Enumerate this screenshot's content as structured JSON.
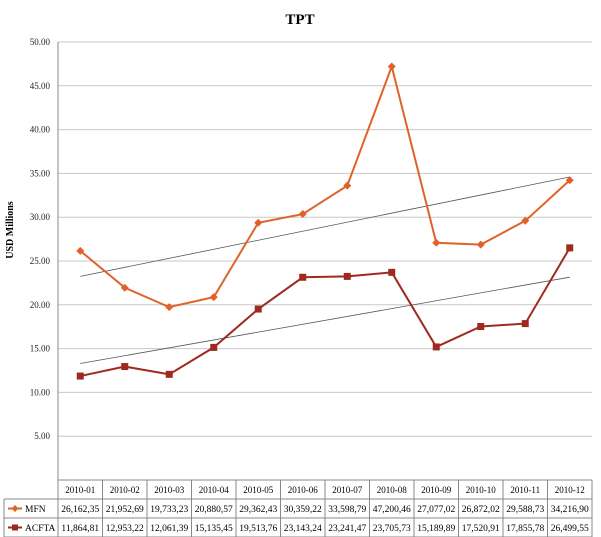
{
  "chart_data": {
    "type": "line",
    "title": "TPT",
    "ylabel": "USD Millions",
    "xlabel": "",
    "ylim": [
      0,
      50
    ],
    "yticks": [
      "",
      "5.00",
      "10.00",
      "15.00",
      "20.00",
      "25.00",
      "30.00",
      "35.00",
      "40.00",
      "45.00",
      "50.00"
    ],
    "grid": true,
    "legend": "table-bottom",
    "trendlines": true,
    "categories": [
      "2010-01",
      "2010-02",
      "2010-03",
      "2010-04",
      "2010-05",
      "2010-06",
      "2010-07",
      "2010-08",
      "2010-09",
      "2010-10",
      "2010-11",
      "2010-12"
    ],
    "series": [
      {
        "name": "MFN",
        "color": "#e0622a",
        "marker": "diamond",
        "values": [
          26.16235,
          21.95269,
          19.73323,
          20.88057,
          29.36243,
          30.35922,
          33.59879,
          47.20046,
          27.07702,
          26.87202,
          29.58873,
          34.2169
        ],
        "labels": [
          "26,162,35",
          "21,952,69",
          "19,733,23",
          "20,880,57",
          "29,362,43",
          "30,359,22",
          "33,598,79",
          "47,200,46",
          "27,077,02",
          "26,872,02",
          "29,588,73",
          "34,216,90"
        ]
      },
      {
        "name": "ACFTA",
        "color": "#9e2a1f",
        "marker": "square",
        "values": [
          11.86481,
          12.95322,
          12.06139,
          15.13545,
          19.51376,
          23.14324,
          23.24147,
          23.70573,
          15.18989,
          17.52091,
          17.85578,
          26.49955
        ],
        "labels": [
          "11,864,81",
          "12,953,22",
          "12,061,39",
          "15,135,45",
          "19,513,76",
          "23,143,24",
          "23,241,47",
          "23,705,73",
          "15,189,89",
          "17,520,91",
          "17,855,78",
          "26,499,55"
        ]
      }
    ]
  }
}
